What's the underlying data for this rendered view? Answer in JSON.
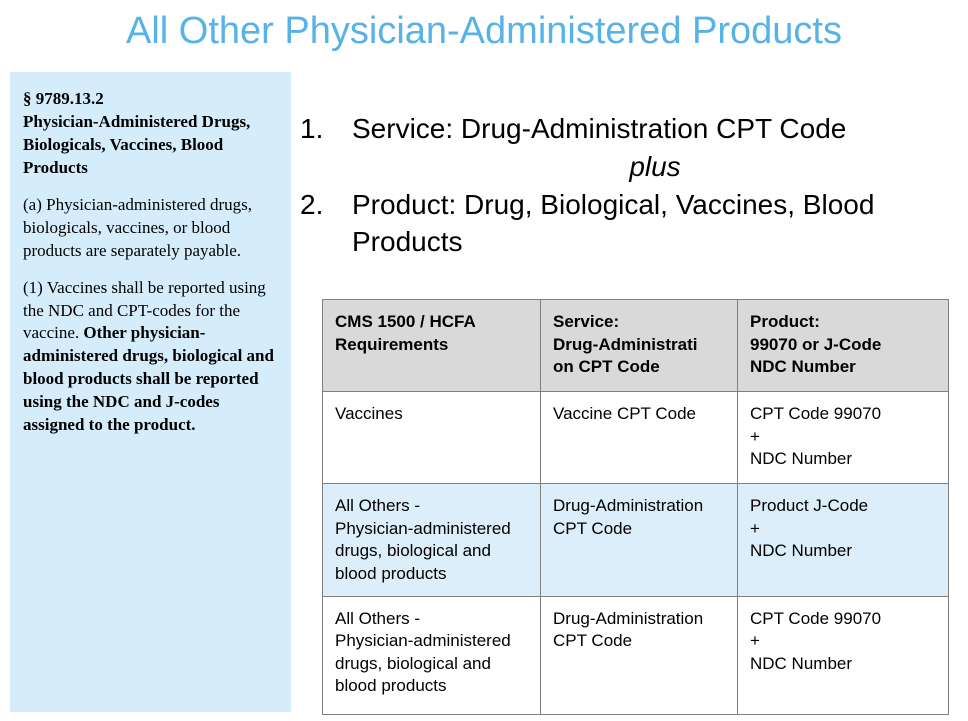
{
  "title": "All Other Physician-Administered Products",
  "colors": {
    "title_accent": "#57B3E5",
    "sidebar_bg": "#D5EDFB",
    "table_header_bg": "#D9D9D9",
    "table_alt_row_bg": "#DCEEF9"
  },
  "sidebar": {
    "section_number": "§ 9789.13.2",
    "section_title": "Physician-Administered Drugs, Biologicals, Vaccines, Blood Products",
    "para_a": "(a) Physician-administered drugs, biologicals, vaccines, or blood products are separately payable.",
    "para_1_normal": "(1) Vaccines shall be reported using the NDC and CPT-codes for the vaccine. ",
    "para_1_bold": "Other physician-administered drugs, biological and blood products shall be reported using the NDC and J-codes assigned to the product."
  },
  "list": {
    "item1_number": "1.",
    "item1_text": "Service: Drug-Administration CPT Code",
    "item1_connector": "plus",
    "item2_number": "2.",
    "item2_text": "Product: Drug, Biological, Vaccines, Blood Products"
  },
  "table": {
    "headers": [
      "CMS 1500 / HCFA\nRequirements",
      "Service:\nDrug-Administrati\non CPT Code",
      "Product:\n99070 or J-Code\nNDC Number"
    ],
    "rows": [
      [
        "Vaccines",
        "Vaccine CPT Code",
        "CPT Code 99070\n+\nNDC Number"
      ],
      [
        "All Others -\nPhysician-administered drugs, biological and blood products",
        "Drug-Administration CPT Code",
        "Product J-Code\n+\nNDC Number"
      ],
      [
        "All Others -\nPhysician-administered drugs, biological and blood products",
        "Drug-Administration CPT Code",
        "CPT Code 99070\n+\nNDC Number"
      ]
    ]
  }
}
